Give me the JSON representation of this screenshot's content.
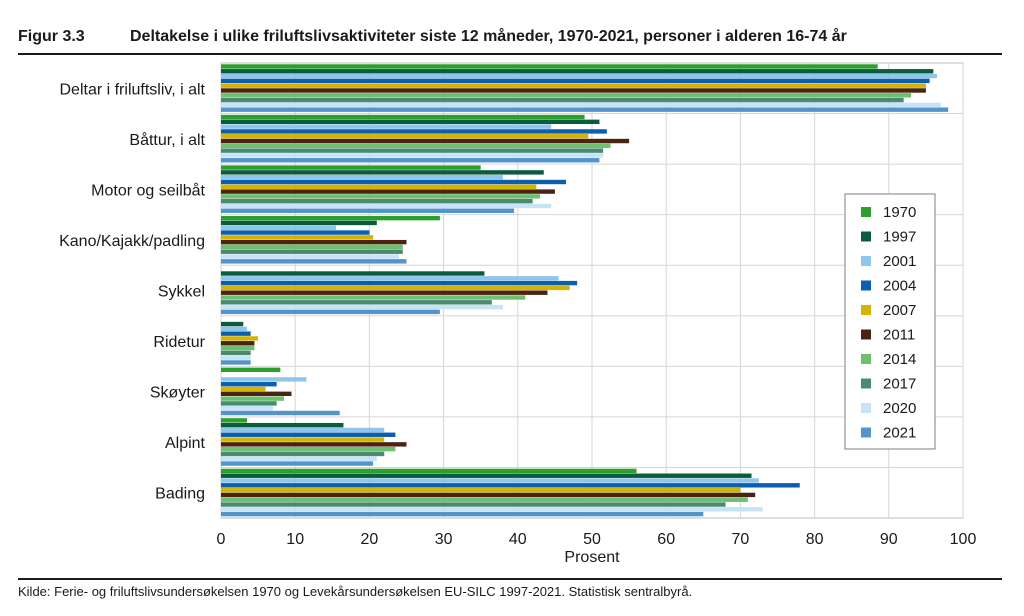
{
  "header": {
    "figure_label": "Figur 3.3",
    "title": "Deltakelse i ulike friluftslivsaktiviteter siste 12 måneder, 1970-2021, personer i alderen 16-74 år"
  },
  "footer": {
    "source": "Kilde: Ferie- og friluftslivsundersøkelsen 1970 og Levekårsundersøkelsen EU-SILC 1997-2021. Statistisk sentralbyrå."
  },
  "colors": {
    "1970": "#2ca02c",
    "1997": "#0b5c3b",
    "2001": "#8ec6ec",
    "2004": "#0b5fae",
    "2007": "#d4b400",
    "2011": "#4a2410",
    "2014": "#6cc070",
    "2017": "#4a8a70",
    "2020": "#c6e4f6",
    "2021": "#5494cc"
  },
  "chart_data": {
    "type": "bar",
    "orientation": "horizontal",
    "title": "Deltakelse i ulike friluftslivsaktiviteter siste 12 måneder, 1970-2021, personer i alderen 16-74 år",
    "xlabel": "Prosent",
    "ylabel": "",
    "xlim": [
      0,
      100
    ],
    "xticks": [
      0,
      10,
      20,
      30,
      40,
      50,
      60,
      70,
      80,
      90,
      100
    ],
    "grid": true,
    "legend_position": "right",
    "categories": [
      "Deltar i friluftsliv, i alt",
      "Båttur, i alt",
      "Motor og seilbåt",
      "Kano/Kajakk/padling",
      "Sykkel",
      "Ridetur",
      "Skøyter",
      "Alpint",
      "Bading"
    ],
    "series": [
      {
        "name": "1970",
        "values": [
          88.5,
          49,
          35,
          29.5,
          null,
          null,
          8,
          3.5,
          56
        ]
      },
      {
        "name": "1997",
        "values": [
          96,
          51,
          43.5,
          21,
          35.5,
          3,
          null,
          16.5,
          71.5
        ]
      },
      {
        "name": "2001",
        "values": [
          96.5,
          44.5,
          38,
          15.5,
          45.5,
          3.5,
          11.5,
          22,
          72.5
        ]
      },
      {
        "name": "2004",
        "values": [
          95.5,
          52,
          46.5,
          20,
          48,
          4,
          7.5,
          23.5,
          78
        ]
      },
      {
        "name": "2007",
        "values": [
          95,
          49.5,
          42.5,
          20.5,
          47,
          5,
          6,
          22,
          70
        ]
      },
      {
        "name": "2011",
        "values": [
          95,
          55,
          45,
          25,
          44,
          4.5,
          9.5,
          25,
          72
        ]
      },
      {
        "name": "2014",
        "values": [
          93,
          52.5,
          43,
          24.5,
          41,
          4.5,
          8.5,
          23.5,
          71
        ]
      },
      {
        "name": "2017",
        "values": [
          92,
          51.5,
          42,
          24.5,
          36.5,
          4,
          7.5,
          22,
          68
        ]
      },
      {
        "name": "2020",
        "values": [
          97,
          51.5,
          44.5,
          24,
          38,
          4,
          7,
          21,
          73
        ]
      },
      {
        "name": "2021",
        "values": [
          98,
          51,
          39.5,
          25,
          29.5,
          4,
          16,
          20.5,
          65
        ]
      }
    ]
  }
}
